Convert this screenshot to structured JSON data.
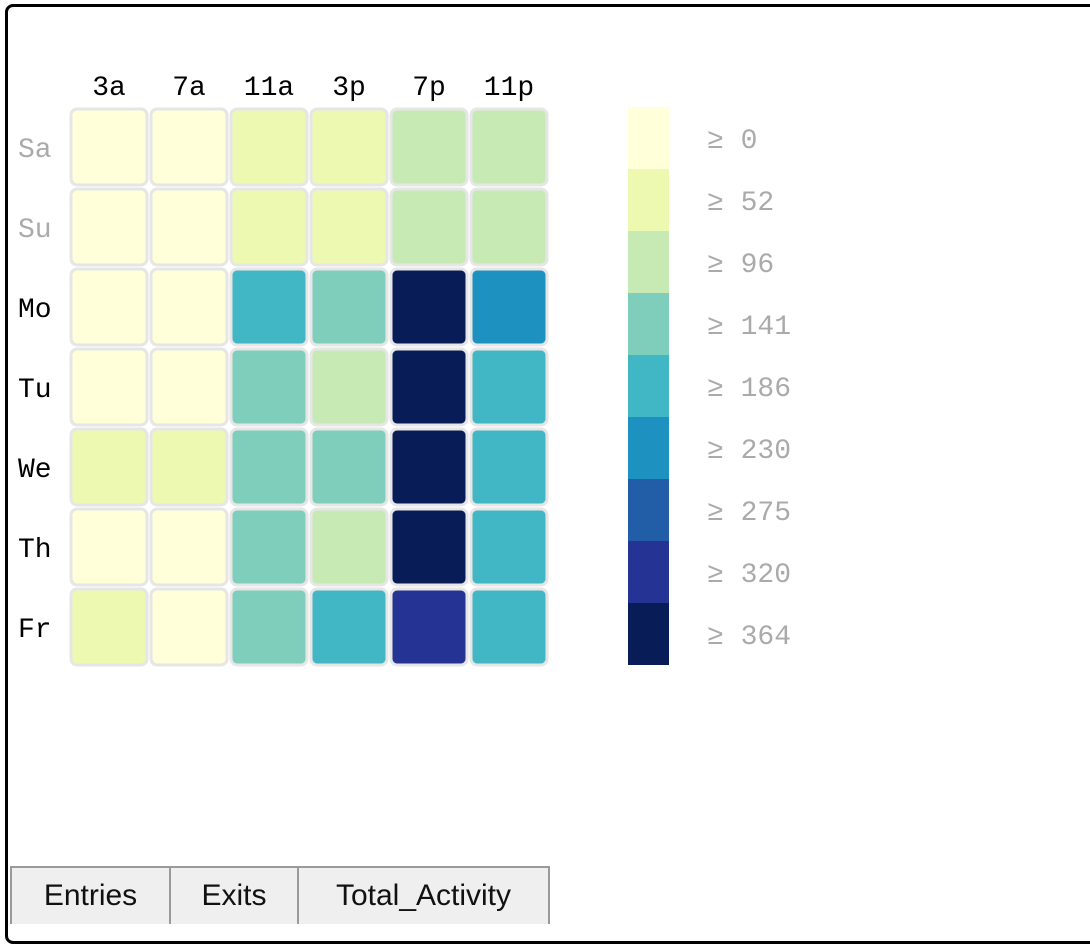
{
  "chart_data": {
    "type": "heatmap",
    "x_labels": [
      "3a",
      "7a",
      "11a",
      "3p",
      "7p",
      "11p"
    ],
    "y_labels": [
      "Sa",
      "Su",
      "Mo",
      "Tu",
      "We",
      "Th",
      "Fr"
    ],
    "y_label_colors": [
      "#aaaaaa",
      "#aaaaaa",
      "#000000",
      "#000000",
      "#000000",
      "#000000",
      "#000000"
    ],
    "bucket_thresholds": [
      0,
      52,
      96,
      141,
      186,
      230,
      275,
      320,
      364
    ],
    "bucket_colors": [
      "#ffffd9",
      "#edf8b1",
      "#c7e9b4",
      "#7fcdbb",
      "#41b6c4",
      "#1d91c0",
      "#225ea8",
      "#253494",
      "#081d58"
    ],
    "legend_labels": [
      "≥ 0",
      "≥ 52",
      "≥ 96",
      "≥ 141",
      "≥ 186",
      "≥ 230",
      "≥ 275",
      "≥ 320",
      "≥ 364"
    ],
    "cell_buckets": [
      [
        0,
        0,
        1,
        1,
        2,
        2
      ],
      [
        0,
        0,
        1,
        1,
        2,
        2
      ],
      [
        0,
        0,
        4,
        3,
        8,
        5
      ],
      [
        0,
        0,
        3,
        2,
        8,
        4
      ],
      [
        1,
        1,
        3,
        3,
        8,
        4
      ],
      [
        0,
        0,
        3,
        2,
        8,
        4
      ],
      [
        1,
        0,
        3,
        4,
        7,
        4
      ]
    ]
  },
  "tabs": [
    {
      "label": "Entries"
    },
    {
      "label": "Exits"
    },
    {
      "label": "Total_Activity"
    }
  ]
}
